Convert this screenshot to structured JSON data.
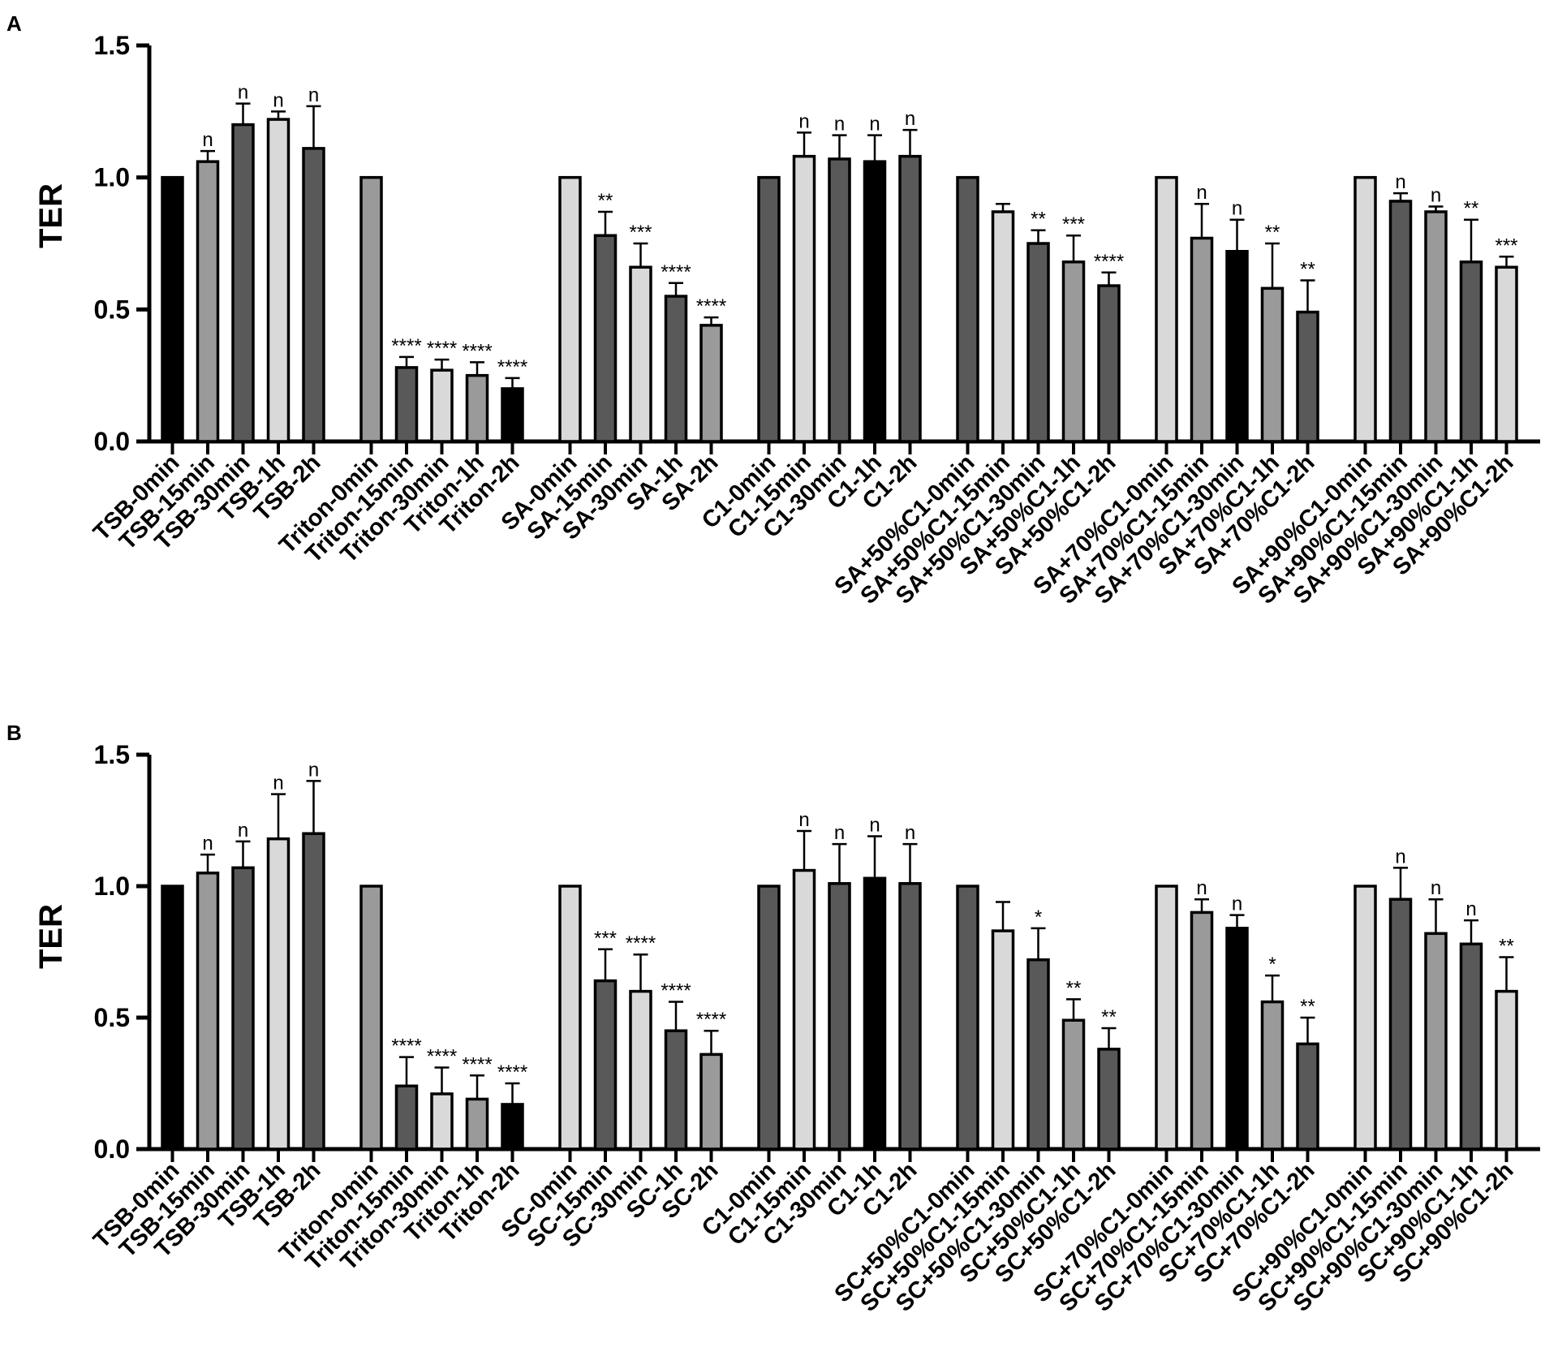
{
  "colors": {
    "black": "#000000",
    "dark_gray": "#595959",
    "mid_gray": "#9a9a9a",
    "light_gray": "#d9d9d9",
    "axis": "#000000",
    "background": "#ffffff"
  },
  "chart_data": [
    {
      "panel": "A",
      "type": "bar",
      "ylabel": "TER",
      "xlabel": "",
      "ylim": [
        0,
        1.5
      ],
      "yticks": [
        "0.0",
        "0.5",
        "1.0",
        "1.5"
      ],
      "ytick_values": [
        0,
        0.5,
        1.0,
        1.5
      ],
      "grid": false,
      "groups": [
        {
          "bars": [
            {
              "label": "TSB-0min",
              "value": 1.0,
              "error": 0,
              "sig": "",
              "color": "black"
            },
            {
              "label": "TSB-15min",
              "value": 1.06,
              "error": 0.04,
              "sig": "n",
              "color": "mid_gray"
            },
            {
              "label": "TSB-30min",
              "value": 1.2,
              "error": 0.08,
              "sig": "n",
              "color": "dark_gray"
            },
            {
              "label": "TSB-1h",
              "value": 1.22,
              "error": 0.03,
              "sig": "n",
              "color": "light_gray"
            },
            {
              "label": "TSB-2h",
              "value": 1.11,
              "error": 0.16,
              "sig": "n",
              "color": "dark_gray"
            }
          ]
        },
        {
          "bars": [
            {
              "label": "Triton-0min",
              "value": 1.0,
              "error": 0,
              "sig": "",
              "color": "mid_gray"
            },
            {
              "label": "Triton-15min",
              "value": 0.28,
              "error": 0.04,
              "sig": "****",
              "color": "dark_gray"
            },
            {
              "label": "Triton-30min",
              "value": 0.27,
              "error": 0.04,
              "sig": "****",
              "color": "light_gray"
            },
            {
              "label": "Triton-1h",
              "value": 0.25,
              "error": 0.05,
              "sig": "****",
              "color": "mid_gray"
            },
            {
              "label": "Triton-2h",
              "value": 0.2,
              "error": 0.04,
              "sig": "****",
              "color": "black"
            }
          ]
        },
        {
          "bars": [
            {
              "label": "SA-0min",
              "value": 1.0,
              "error": 0,
              "sig": "",
              "color": "light_gray"
            },
            {
              "label": "SA-15min",
              "value": 0.78,
              "error": 0.09,
              "sig": "**",
              "color": "dark_gray"
            },
            {
              "label": "SA-30min",
              "value": 0.66,
              "error": 0.09,
              "sig": "***",
              "color": "light_gray"
            },
            {
              "label": "SA-1h",
              "value": 0.55,
              "error": 0.05,
              "sig": "****",
              "color": "dark_gray"
            },
            {
              "label": "SA-2h",
              "value": 0.44,
              "error": 0.03,
              "sig": "****",
              "color": "mid_gray"
            }
          ]
        },
        {
          "bars": [
            {
              "label": "C1-0min",
              "value": 1.0,
              "error": 0,
              "sig": "",
              "color": "dark_gray"
            },
            {
              "label": "C1-15min",
              "value": 1.08,
              "error": 0.09,
              "sig": "n",
              "color": "light_gray"
            },
            {
              "label": "C1-30min",
              "value": 1.07,
              "error": 0.09,
              "sig": "n",
              "color": "dark_gray"
            },
            {
              "label": "C1-1h",
              "value": 1.06,
              "error": 0.1,
              "sig": "n",
              "color": "black"
            },
            {
              "label": "C1-2h",
              "value": 1.08,
              "error": 0.1,
              "sig": "n",
              "color": "dark_gray"
            }
          ]
        },
        {
          "bars": [
            {
              "label": "SA+50%C1-0min",
              "value": 1.0,
              "error": 0,
              "sig": "",
              "color": "dark_gray"
            },
            {
              "label": "SA+50%C1-15min",
              "value": 0.87,
              "error": 0.03,
              "sig": "",
              "color": "light_gray"
            },
            {
              "label": "SA+50%C1-30min",
              "value": 0.75,
              "error": 0.05,
              "sig": "**",
              "color": "dark_gray"
            },
            {
              "label": "SA+50%C1-1h",
              "value": 0.68,
              "error": 0.1,
              "sig": "***",
              "color": "mid_gray"
            },
            {
              "label": "SA+50%C1-2h",
              "value": 0.59,
              "error": 0.05,
              "sig": "****",
              "color": "dark_gray"
            }
          ]
        },
        {
          "bars": [
            {
              "label": "SA+70%C1-0min",
              "value": 1.0,
              "error": 0,
              "sig": "",
              "color": "light_gray"
            },
            {
              "label": "SA+70%C1-15min",
              "value": 0.77,
              "error": 0.13,
              "sig": "n",
              "color": "mid_gray"
            },
            {
              "label": "SA+70%C1-30min",
              "value": 0.72,
              "error": 0.12,
              "sig": "n",
              "color": "black"
            },
            {
              "label": "SA+70%C1-1h",
              "value": 0.58,
              "error": 0.17,
              "sig": "**",
              "color": "mid_gray"
            },
            {
              "label": "SA+70%C1-2h",
              "value": 0.49,
              "error": 0.12,
              "sig": "**",
              "color": "dark_gray"
            }
          ]
        },
        {
          "bars": [
            {
              "label": "SA+90%C1-0min",
              "value": 1.0,
              "error": 0,
              "sig": "",
              "color": "light_gray"
            },
            {
              "label": "SA+90%C1-15min",
              "value": 0.91,
              "error": 0.03,
              "sig": "n",
              "color": "dark_gray"
            },
            {
              "label": "SA+90%C1-30min",
              "value": 0.87,
              "error": 0.02,
              "sig": "n",
              "color": "mid_gray"
            },
            {
              "label": "SA+90%C1-1h",
              "value": 0.68,
              "error": 0.16,
              "sig": "**",
              "color": "dark_gray"
            },
            {
              "label": "SA+90%C1-2h",
              "value": 0.66,
              "error": 0.04,
              "sig": "***",
              "color": "light_gray"
            }
          ]
        }
      ]
    },
    {
      "panel": "B",
      "type": "bar",
      "ylabel": "TER",
      "xlabel": "",
      "ylim": [
        0,
        1.5
      ],
      "yticks": [
        "0.0",
        "0.5",
        "1.0",
        "1.5"
      ],
      "ytick_values": [
        0,
        0.5,
        1.0,
        1.5
      ],
      "grid": false,
      "groups": [
        {
          "bars": [
            {
              "label": "TSB-0min",
              "value": 1.0,
              "error": 0,
              "sig": "",
              "color": "black"
            },
            {
              "label": "TSB-15min",
              "value": 1.05,
              "error": 0.07,
              "sig": "n",
              "color": "mid_gray"
            },
            {
              "label": "TSB-30min",
              "value": 1.07,
              "error": 0.1,
              "sig": "n",
              "color": "dark_gray"
            },
            {
              "label": "TSB-1h",
              "value": 1.18,
              "error": 0.17,
              "sig": "n",
              "color": "light_gray"
            },
            {
              "label": "TSB-2h",
              "value": 1.2,
              "error": 0.2,
              "sig": "n",
              "color": "dark_gray"
            }
          ]
        },
        {
          "bars": [
            {
              "label": "Triton-0min",
              "value": 1.0,
              "error": 0,
              "sig": "",
              "color": "mid_gray"
            },
            {
              "label": "Triton-15min",
              "value": 0.24,
              "error": 0.11,
              "sig": "****",
              "color": "dark_gray"
            },
            {
              "label": "Triton-30min",
              "value": 0.21,
              "error": 0.1,
              "sig": "****",
              "color": "light_gray"
            },
            {
              "label": "Triton-1h",
              "value": 0.19,
              "error": 0.09,
              "sig": "****",
              "color": "mid_gray"
            },
            {
              "label": "Triton-2h",
              "value": 0.17,
              "error": 0.08,
              "sig": "****",
              "color": "black"
            }
          ]
        },
        {
          "bars": [
            {
              "label": "SC-0min",
              "value": 1.0,
              "error": 0,
              "sig": "",
              "color": "light_gray"
            },
            {
              "label": "SC-15min",
              "value": 0.64,
              "error": 0.12,
              "sig": "***",
              "color": "dark_gray"
            },
            {
              "label": "SC-30min",
              "value": 0.6,
              "error": 0.14,
              "sig": "****",
              "color": "light_gray"
            },
            {
              "label": "SC-1h",
              "value": 0.45,
              "error": 0.11,
              "sig": "****",
              "color": "dark_gray"
            },
            {
              "label": "SC-2h",
              "value": 0.36,
              "error": 0.09,
              "sig": "****",
              "color": "mid_gray"
            }
          ]
        },
        {
          "bars": [
            {
              "label": "C1-0min",
              "value": 1.0,
              "error": 0,
              "sig": "",
              "color": "dark_gray"
            },
            {
              "label": "C1-15min",
              "value": 1.06,
              "error": 0.15,
              "sig": "n",
              "color": "light_gray"
            },
            {
              "label": "C1-30min",
              "value": 1.01,
              "error": 0.15,
              "sig": "n",
              "color": "dark_gray"
            },
            {
              "label": "C1-1h",
              "value": 1.03,
              "error": 0.16,
              "sig": "n",
              "color": "black"
            },
            {
              "label": "C1-2h",
              "value": 1.01,
              "error": 0.15,
              "sig": "n",
              "color": "dark_gray"
            }
          ]
        },
        {
          "bars": [
            {
              "label": "SC+50%C1-0min",
              "value": 1.0,
              "error": 0,
              "sig": "",
              "color": "dark_gray"
            },
            {
              "label": "SC+50%C1-15min",
              "value": 0.83,
              "error": 0.11,
              "sig": "",
              "color": "light_gray"
            },
            {
              "label": "SC+50%C1-30min",
              "value": 0.72,
              "error": 0.12,
              "sig": "*",
              "color": "dark_gray"
            },
            {
              "label": "SC+50%C1-1h",
              "value": 0.49,
              "error": 0.08,
              "sig": "**",
              "color": "mid_gray"
            },
            {
              "label": "SC+50%C1-2h",
              "value": 0.38,
              "error": 0.08,
              "sig": "**",
              "color": "dark_gray"
            }
          ]
        },
        {
          "bars": [
            {
              "label": "SC+70%C1-0min",
              "value": 1.0,
              "error": 0,
              "sig": "",
              "color": "light_gray"
            },
            {
              "label": "SC+70%C1-15min",
              "value": 0.9,
              "error": 0.05,
              "sig": "n",
              "color": "mid_gray"
            },
            {
              "label": "SC+70%C1-30min",
              "value": 0.84,
              "error": 0.05,
              "sig": "n",
              "color": "black"
            },
            {
              "label": "SC+70%C1-1h",
              "value": 0.56,
              "error": 0.1,
              "sig": "*",
              "color": "mid_gray"
            },
            {
              "label": "SC+70%C1-2h",
              "value": 0.4,
              "error": 0.1,
              "sig": "**",
              "color": "dark_gray"
            }
          ]
        },
        {
          "bars": [
            {
              "label": "SC+90%C1-0min",
              "value": 1.0,
              "error": 0,
              "sig": "",
              "color": "light_gray"
            },
            {
              "label": "SC+90%C1-15min",
              "value": 0.95,
              "error": 0.12,
              "sig": "n",
              "color": "dark_gray"
            },
            {
              "label": "SC+90%C1-30min",
              "value": 0.82,
              "error": 0.13,
              "sig": "n",
              "color": "mid_gray"
            },
            {
              "label": "SC+90%C1-1h",
              "value": 0.78,
              "error": 0.09,
              "sig": "n",
              "color": "dark_gray"
            },
            {
              "label": "SC+90%C1-2h",
              "value": 0.6,
              "error": 0.13,
              "sig": "**",
              "color": "light_gray"
            }
          ]
        }
      ]
    }
  ]
}
